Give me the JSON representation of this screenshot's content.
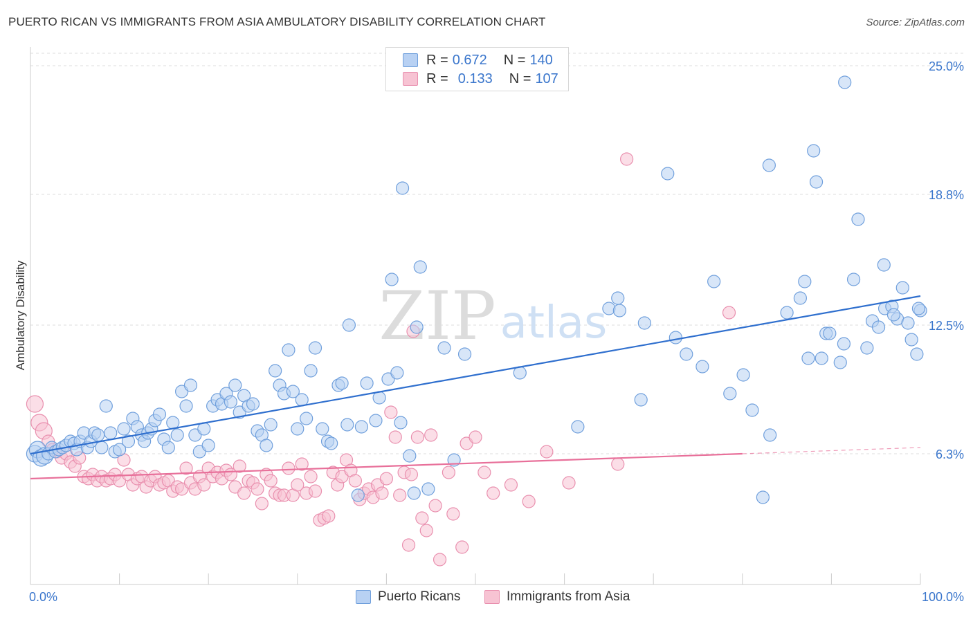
{
  "title": "PUERTO RICAN VS IMMIGRANTS FROM ASIA AMBULATORY DISABILITY CORRELATION CHART",
  "source": "Source: ZipAtlas.com",
  "watermark": {
    "zip": "ZIP",
    "atlas": "atlas"
  },
  "legend": {
    "r_label": "R =",
    "n_label": "N =",
    "series": [
      {
        "name": "Puerto Ricans",
        "r": "0.672",
        "n": "140",
        "fill": "#b8d1f3",
        "stroke": "#6f9fdc"
      },
      {
        "name": "Immigrants from Asia",
        "r": "0.133",
        "n": "107",
        "fill": "#f7c3d3",
        "stroke": "#e98fae"
      }
    ]
  },
  "colors": {
    "blue": "#3a76cc",
    "blue_line": "#2f6fce",
    "pink_line": "#e8709a",
    "grid": "#dddddd",
    "tick_label": "#3a76cc"
  },
  "chart_data": {
    "type": "scatter",
    "title": "PUERTO RICAN VS IMMIGRANTS FROM ASIA AMBULATORY DISABILITY CORRELATION CHART",
    "xlabel": "",
    "ylabel": "Ambulatory Disability",
    "xlim": [
      0,
      100
    ],
    "ylim": [
      0,
      25.6
    ],
    "x_tick_labels": [
      "0.0%",
      "100.0%"
    ],
    "y_ticks": [
      6.3,
      12.5,
      18.8,
      25.0
    ],
    "y_tick_labels": [
      "6.3%",
      "12.5%",
      "18.8%",
      "25.0%"
    ],
    "grid": "horizontal-dashed",
    "legend_position": "top-center",
    "series": [
      {
        "name": "Puerto Ricans",
        "trend": {
          "x0": 0,
          "y0": 6.3,
          "x1": 100,
          "y1": 13.9
        },
        "points": [
          [
            0.5,
            6.3
          ],
          [
            0.8,
            6.5
          ],
          [
            1.2,
            6.1
          ],
          [
            1.6,
            6.2
          ],
          [
            2.0,
            6.3
          ],
          [
            2.4,
            6.6
          ],
          [
            2.8,
            6.4
          ],
          [
            3.2,
            6.5
          ],
          [
            3.6,
            6.6
          ],
          [
            4.0,
            6.7
          ],
          [
            4.5,
            6.9
          ],
          [
            4.9,
            6.8
          ],
          [
            5.2,
            6.5
          ],
          [
            5.6,
            6.9
          ],
          [
            6.0,
            7.3
          ],
          [
            6.4,
            6.6
          ],
          [
            6.8,
            6.9
          ],
          [
            7.2,
            7.3
          ],
          [
            7.6,
            7.2
          ],
          [
            8.0,
            6.6
          ],
          [
            8.5,
            8.6
          ],
          [
            9.0,
            7.3
          ],
          [
            9.5,
            6.4
          ],
          [
            10.0,
            6.5
          ],
          [
            10.5,
            7.5
          ],
          [
            11.0,
            6.9
          ],
          [
            11.5,
            8.0
          ],
          [
            12.0,
            7.6
          ],
          [
            12.5,
            7.2
          ],
          [
            12.8,
            6.9
          ],
          [
            13.2,
            7.3
          ],
          [
            13.6,
            7.5
          ],
          [
            14.0,
            7.9
          ],
          [
            14.5,
            8.2
          ],
          [
            15.0,
            7.0
          ],
          [
            15.5,
            6.6
          ],
          [
            16.0,
            7.8
          ],
          [
            16.5,
            7.2
          ],
          [
            17.0,
            9.3
          ],
          [
            17.5,
            8.6
          ],
          [
            18.0,
            9.6
          ],
          [
            18.5,
            7.2
          ],
          [
            19.0,
            6.4
          ],
          [
            19.5,
            7.5
          ],
          [
            20.0,
            6.7
          ],
          [
            20.5,
            8.6
          ],
          [
            21.0,
            8.9
          ],
          [
            21.5,
            8.7
          ],
          [
            22.0,
            9.2
          ],
          [
            22.5,
            8.8
          ],
          [
            23.0,
            9.6
          ],
          [
            23.5,
            8.3
          ],
          [
            24.0,
            9.1
          ],
          [
            24.5,
            8.6
          ],
          [
            25.0,
            8.7
          ],
          [
            25.5,
            7.4
          ],
          [
            26.0,
            7.2
          ],
          [
            26.5,
            6.7
          ],
          [
            27.0,
            7.7
          ],
          [
            27.5,
            10.3
          ],
          [
            28.0,
            9.6
          ],
          [
            28.5,
            9.2
          ],
          [
            29.0,
            11.3
          ],
          [
            29.5,
            9.3
          ],
          [
            30.0,
            7.5
          ],
          [
            30.5,
            8.9
          ],
          [
            31.0,
            8.0
          ],
          [
            31.5,
            10.3
          ],
          [
            32.0,
            11.4
          ],
          [
            32.8,
            7.5
          ],
          [
            33.4,
            6.9
          ],
          [
            33.8,
            6.8
          ],
          [
            34.6,
            9.6
          ],
          [
            35.0,
            9.7
          ],
          [
            35.6,
            7.7
          ],
          [
            35.8,
            12.5
          ],
          [
            36.8,
            4.3
          ],
          [
            37.2,
            7.6
          ],
          [
            37.8,
            9.7
          ],
          [
            38.8,
            7.9
          ],
          [
            39.2,
            9.0
          ],
          [
            40.2,
            9.9
          ],
          [
            40.6,
            14.7
          ],
          [
            41.2,
            10.2
          ],
          [
            41.6,
            7.8
          ],
          [
            41.8,
            19.1
          ],
          [
            42.6,
            6.2
          ],
          [
            43.1,
            4.4
          ],
          [
            43.4,
            12.4
          ],
          [
            43.8,
            15.3
          ],
          [
            44.7,
            4.6
          ],
          [
            46.5,
            11.4
          ],
          [
            47.6,
            6.0
          ],
          [
            48.8,
            11.1
          ],
          [
            55.0,
            10.2
          ],
          [
            61.5,
            7.6
          ],
          [
            65.0,
            13.3
          ],
          [
            66.0,
            13.8
          ],
          [
            66.2,
            13.2
          ],
          [
            68.6,
            8.9
          ],
          [
            69.0,
            12.6
          ],
          [
            71.6,
            19.8
          ],
          [
            72.5,
            11.9
          ],
          [
            73.7,
            11.1
          ],
          [
            75.5,
            10.5
          ],
          [
            76.8,
            14.6
          ],
          [
            78.6,
            9.2
          ],
          [
            80.1,
            10.1
          ],
          [
            81.1,
            8.4
          ],
          [
            82.3,
            4.2
          ],
          [
            83.0,
            20.2
          ],
          [
            83.1,
            7.2
          ],
          [
            85.0,
            13.1
          ],
          [
            86.5,
            13.8
          ],
          [
            87.0,
            14.6
          ],
          [
            87.4,
            10.9
          ],
          [
            88.0,
            20.9
          ],
          [
            88.3,
            19.4
          ],
          [
            88.9,
            10.9
          ],
          [
            89.4,
            12.1
          ],
          [
            89.8,
            12.1
          ],
          [
            91.0,
            10.7
          ],
          [
            91.4,
            11.6
          ],
          [
            91.5,
            24.2
          ],
          [
            92.5,
            14.7
          ],
          [
            93.0,
            17.6
          ],
          [
            94.0,
            11.4
          ],
          [
            94.6,
            12.7
          ],
          [
            95.3,
            12.4
          ],
          [
            95.9,
            15.4
          ],
          [
            96.0,
            13.3
          ],
          [
            96.8,
            13.4
          ],
          [
            97.4,
            12.8
          ],
          [
            98.0,
            14.3
          ],
          [
            98.6,
            12.6
          ],
          [
            99.0,
            11.8
          ],
          [
            99.6,
            11.1
          ],
          [
            100.0,
            13.2
          ],
          [
            99.8,
            13.3
          ],
          [
            97.0,
            13.0
          ]
        ]
      },
      {
        "name": "Immigrants from Asia",
        "trend": {
          "x0": 0,
          "y0": 5.1,
          "x1": 80,
          "y1": 6.3,
          "dashed_to_x": 100,
          "dashed_to_y": 6.6
        },
        "points": [
          [
            0.5,
            8.7
          ],
          [
            1.0,
            7.8
          ],
          [
            1.5,
            7.4
          ],
          [
            2.0,
            6.9
          ],
          [
            2.5,
            6.5
          ],
          [
            3.0,
            6.4
          ],
          [
            3.5,
            6.1
          ],
          [
            4.0,
            6.3
          ],
          [
            4.5,
            5.9
          ],
          [
            5.0,
            5.7
          ],
          [
            5.5,
            6.1
          ],
          [
            6.0,
            5.2
          ],
          [
            6.5,
            5.1
          ],
          [
            7.0,
            5.3
          ],
          [
            7.5,
            5.0
          ],
          [
            8.0,
            5.2
          ],
          [
            8.5,
            5.0
          ],
          [
            9.0,
            5.1
          ],
          [
            9.5,
            5.3
          ],
          [
            10.0,
            5.0
          ],
          [
            10.5,
            6.0
          ],
          [
            11.0,
            5.3
          ],
          [
            11.5,
            4.8
          ],
          [
            12.0,
            5.1
          ],
          [
            12.5,
            5.2
          ],
          [
            13.0,
            4.7
          ],
          [
            13.5,
            5.0
          ],
          [
            14.0,
            5.2
          ],
          [
            14.5,
            4.8
          ],
          [
            15.0,
            4.9
          ],
          [
            15.5,
            5.0
          ],
          [
            16.0,
            4.5
          ],
          [
            16.5,
            4.7
          ],
          [
            17.0,
            4.6
          ],
          [
            17.5,
            5.6
          ],
          [
            18.0,
            4.9
          ],
          [
            18.5,
            4.6
          ],
          [
            19.0,
            5.2
          ],
          [
            19.5,
            4.8
          ],
          [
            20.0,
            5.6
          ],
          [
            20.5,
            5.2
          ],
          [
            21.0,
            5.4
          ],
          [
            21.5,
            5.1
          ],
          [
            22.0,
            5.5
          ],
          [
            22.5,
            5.3
          ],
          [
            23.0,
            4.7
          ],
          [
            23.5,
            5.7
          ],
          [
            24.0,
            4.4
          ],
          [
            24.5,
            5.0
          ],
          [
            25.0,
            4.9
          ],
          [
            25.5,
            4.6
          ],
          [
            26.0,
            3.9
          ],
          [
            26.5,
            5.3
          ],
          [
            27.0,
            5.0
          ],
          [
            27.5,
            4.4
          ],
          [
            28.0,
            4.3
          ],
          [
            28.5,
            4.3
          ],
          [
            29.0,
            5.6
          ],
          [
            29.5,
            4.3
          ],
          [
            30.0,
            4.8
          ],
          [
            30.5,
            5.8
          ],
          [
            31.0,
            4.4
          ],
          [
            31.5,
            5.2
          ],
          [
            32.0,
            4.5
          ],
          [
            32.5,
            3.1
          ],
          [
            33.0,
            3.2
          ],
          [
            33.5,
            3.3
          ],
          [
            34.0,
            5.4
          ],
          [
            34.5,
            4.8
          ],
          [
            35.0,
            5.2
          ],
          [
            35.5,
            6.0
          ],
          [
            36.0,
            5.5
          ],
          [
            36.5,
            5.0
          ],
          [
            37.0,
            4.1
          ],
          [
            37.5,
            4.4
          ],
          [
            38.0,
            4.6
          ],
          [
            38.5,
            4.2
          ],
          [
            39.0,
            4.8
          ],
          [
            39.5,
            4.4
          ],
          [
            40.0,
            5.1
          ],
          [
            40.5,
            8.3
          ],
          [
            41.0,
            7.1
          ],
          [
            41.5,
            4.3
          ],
          [
            42.0,
            5.4
          ],
          [
            42.5,
            1.9
          ],
          [
            42.8,
            5.3
          ],
          [
            43.0,
            12.2
          ],
          [
            43.5,
            7.1
          ],
          [
            44.0,
            3.2
          ],
          [
            44.5,
            2.6
          ],
          [
            45.0,
            7.2
          ],
          [
            45.5,
            3.8
          ],
          [
            46.0,
            1.2
          ],
          [
            47.0,
            5.4
          ],
          [
            47.5,
            3.4
          ],
          [
            48.5,
            1.8
          ],
          [
            49.0,
            6.8
          ],
          [
            50.0,
            7.1
          ],
          [
            51.0,
            5.4
          ],
          [
            52.0,
            4.4
          ],
          [
            54.0,
            4.8
          ],
          [
            56.0,
            4.0
          ],
          [
            58.0,
            6.4
          ],
          [
            60.5,
            4.9
          ],
          [
            66.0,
            5.8
          ],
          [
            67.0,
            20.5
          ],
          [
            78.5,
            13.1
          ]
        ]
      }
    ]
  }
}
